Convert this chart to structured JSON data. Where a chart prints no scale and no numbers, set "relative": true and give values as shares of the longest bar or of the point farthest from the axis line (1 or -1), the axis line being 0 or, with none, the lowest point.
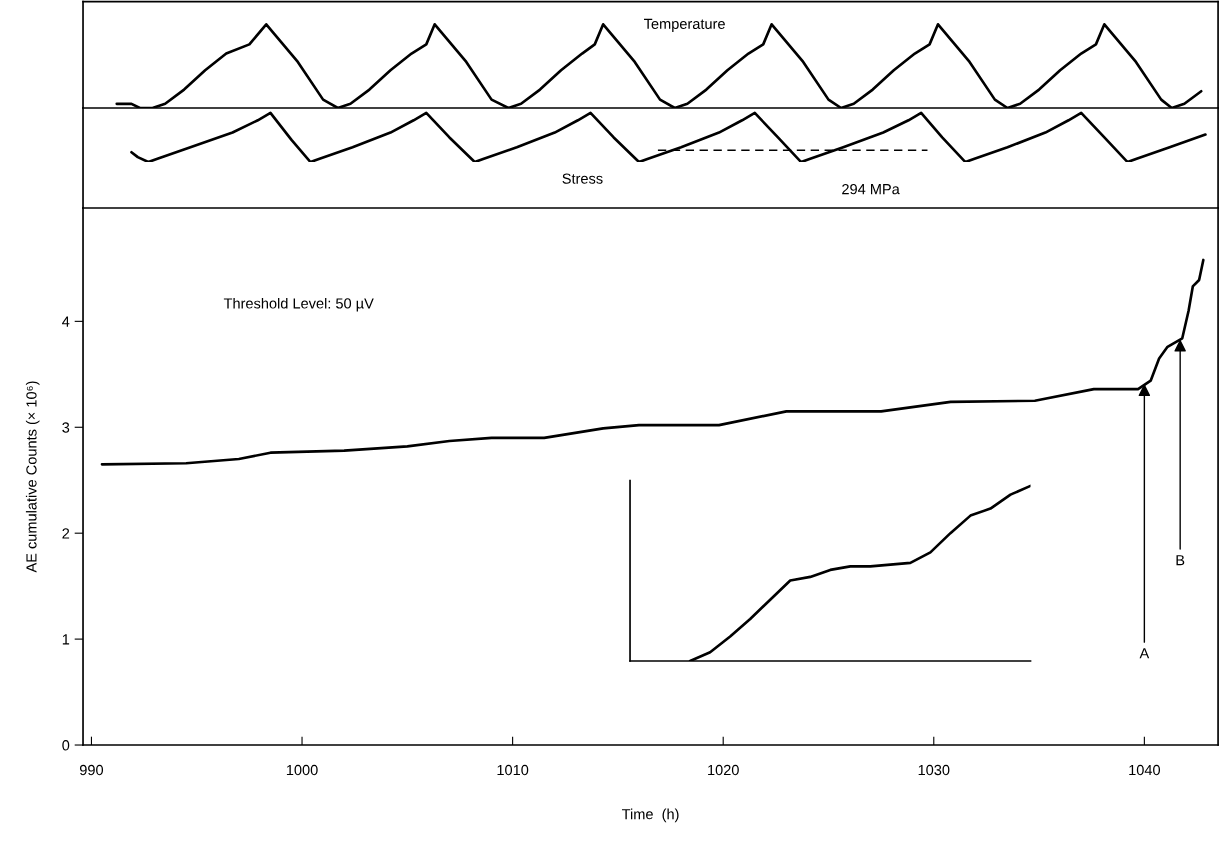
{
  "chart_data": [
    {
      "type": "line",
      "relative": true,
      "color": "#000000",
      "xlim": [
        989.6,
        1043.5
      ],
      "annotations": [
        "Temperature"
      ],
      "x": [
        991.2,
        991.9,
        992.3,
        992.9,
        993.5,
        994.4,
        995.4,
        996.4,
        997.5,
        998.3,
        999.8,
        1001.0,
        1001.7,
        1002.3,
        1003.2,
        1004.2,
        1005.2,
        1005.9,
        1006.3,
        1007.8,
        1009.0,
        1009.8,
        1010.4,
        1011.3,
        1012.3,
        1013.3,
        1013.9,
        1014.3,
        1015.8,
        1017.0,
        1017.7,
        1018.3,
        1019.2,
        1020.2,
        1021.2,
        1021.9,
        1022.3,
        1023.8,
        1025.0,
        1025.6,
        1026.2,
        1027.1,
        1028.1,
        1029.1,
        1029.8,
        1030.2,
        1031.7,
        1032.9,
        1033.5,
        1034.1,
        1035.0,
        1036.0,
        1037.0,
        1037.7,
        1038.1,
        1039.6,
        1040.8,
        1041.3,
        1041.9,
        1042.7
      ],
      "values": [
        0.05,
        0.05,
        0.0,
        0.0,
        0.05,
        0.22,
        0.45,
        0.65,
        0.76,
        1.0,
        0.55,
        0.1,
        0.0,
        0.05,
        0.22,
        0.45,
        0.65,
        0.76,
        1.0,
        0.55,
        0.1,
        0.0,
        0.05,
        0.22,
        0.45,
        0.65,
        0.76,
        1.0,
        0.55,
        0.1,
        0.0,
        0.05,
        0.22,
        0.45,
        0.65,
        0.76,
        1.0,
        0.55,
        0.1,
        0.0,
        0.05,
        0.22,
        0.45,
        0.65,
        0.76,
        1.0,
        0.55,
        0.1,
        0.0,
        0.05,
        0.22,
        0.45,
        0.65,
        0.76,
        1.0,
        0.55,
        0.1,
        0.0,
        0.05,
        0.2
      ]
    },
    {
      "type": "line",
      "relative": true,
      "xlim": [
        989.6,
        1043.5
      ],
      "annotations": [
        "Stress",
        {
          "text": "294 MPa",
          "x": 1027.0,
          "y": 0.24
        }
      ],
      "series": [
        {
          "color": "#000000",
          "line_style": "solid",
          "x": [
            991.9,
            992.2,
            992.7,
            993.1,
            994.7,
            996.7,
            997.9,
            998.5,
            999.5,
            1000.4,
            1000.8,
            1002.4,
            1004.2,
            1005.3,
            1005.9,
            1007.0,
            1008.2,
            1008.6,
            1010.2,
            1012.0,
            1013.1,
            1013.7,
            1014.8,
            1016.0,
            1016.4,
            1018.0,
            1019.8,
            1020.9,
            1021.5,
            1022.6,
            1023.7,
            1024.1,
            1025.7,
            1027.6,
            1028.8,
            1029.4,
            1030.4,
            1031.5,
            1031.9,
            1033.5,
            1035.3,
            1036.4,
            1037.0,
            1038.1,
            1039.2,
            1039.6,
            1041.2,
            1042.9
          ],
          "values": [
            0.2,
            0.1,
            0.0,
            0.06,
            0.3,
            0.6,
            0.85,
            1.0,
            0.45,
            0.0,
            0.06,
            0.3,
            0.6,
            0.85,
            1.0,
            0.5,
            0.0,
            0.06,
            0.3,
            0.6,
            0.85,
            1.0,
            0.5,
            0.0,
            0.06,
            0.3,
            0.6,
            0.85,
            1.0,
            0.5,
            0.0,
            0.06,
            0.3,
            0.6,
            0.85,
            1.0,
            0.5,
            0.0,
            0.06,
            0.3,
            0.6,
            0.85,
            1.0,
            0.5,
            0.0,
            0.06,
            0.3,
            0.56
          ]
        },
        {
          "color": "#000000",
          "line_style": "dashed",
          "x": [
            1016.9,
            1029.7
          ],
          "values": [
            0.24,
            0.24
          ]
        }
      ]
    },
    {
      "type": "line",
      "color": "#000000",
      "xlabel": "Time  (h)",
      "ylabel": "AE cumulative Counts (× 10⁶)",
      "xlim": [
        989.6,
        1043.5
      ],
      "ylim": [
        0,
        5.07
      ],
      "xticks": [
        990,
        1000,
        1010,
        1020,
        1030,
        1040
      ],
      "yticks": [
        0,
        1,
        2,
        3,
        4
      ],
      "annotations": [
        "Threshold Level: 50 µV",
        {
          "text": "A",
          "x": 1040.0,
          "y": 3.41
        },
        {
          "text": "B",
          "x": 1041.7,
          "y": 3.83
        }
      ],
      "x": [
        990.5,
        994.5,
        997.0,
        998.5,
        1002.0,
        1005.0,
        1007.0,
        1009.0,
        1011.5,
        1014.3,
        1016.0,
        1019.8,
        1023.0,
        1027.5,
        1030.8,
        1034.8,
        1037.6,
        1039.7,
        1040.3,
        1040.7,
        1041.1,
        1041.8,
        1042.1,
        1042.3,
        1042.6,
        1042.8
      ],
      "values": [
        2.65,
        2.66,
        2.7,
        2.76,
        2.78,
        2.82,
        2.87,
        2.9,
        2.9,
        2.99,
        3.02,
        3.02,
        3.15,
        3.15,
        3.24,
        3.25,
        3.36,
        3.36,
        3.44,
        3.65,
        3.76,
        3.84,
        4.1,
        4.33,
        4.39,
        4.58
      ]
    },
    {
      "type": "line",
      "relative": true,
      "color": "#000000",
      "categories": [
        null,
        null,
        null,
        null,
        null,
        null,
        null,
        null,
        null,
        null,
        null,
        null,
        null,
        null,
        null,
        null,
        null,
        null,
        null,
        null,
        null
      ],
      "values": [
        null,
        null,
        null,
        0.0,
        0.05,
        0.14,
        0.24,
        0.35,
        0.46,
        0.48,
        0.52,
        0.54,
        0.54,
        0.55,
        0.56,
        0.62,
        0.73,
        0.83,
        0.87,
        0.95,
        1.0
      ]
    }
  ]
}
